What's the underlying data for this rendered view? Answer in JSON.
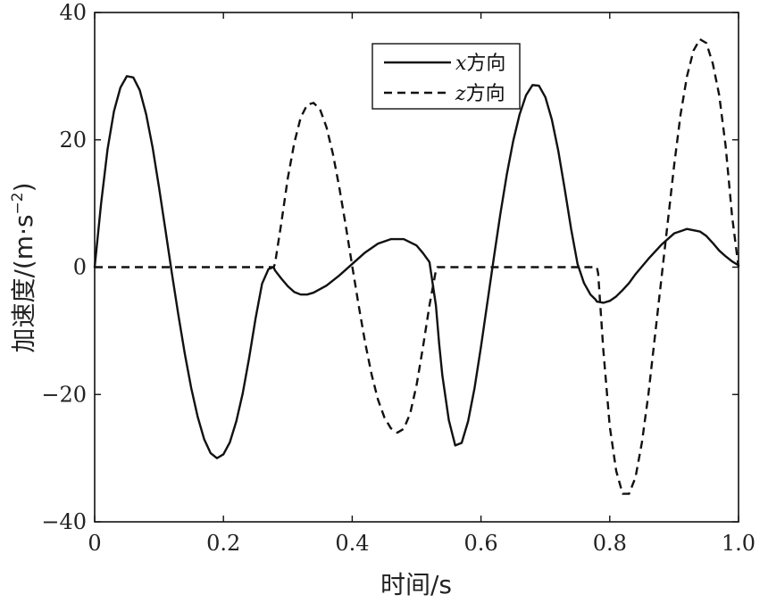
{
  "chart_data": {
    "type": "line",
    "xlabel": "时间/s",
    "ylabel": "加速度/(m·s",
    "ylabel_sup": "−2",
    "ylabel_close": ")",
    "xlim": [
      0,
      1.0
    ],
    "ylim": [
      -40,
      40
    ],
    "xticks": [
      0,
      0.2,
      0.4,
      0.6,
      0.8,
      1.0
    ],
    "xtick_labels": [
      "0",
      "0.2",
      "0.4",
      "0.6",
      "0.8",
      "1.0"
    ],
    "yticks": [
      40,
      20,
      0,
      -20,
      -40
    ],
    "ytick_labels": [
      "40",
      "20",
      "0",
      "−20",
      "−40"
    ],
    "legend_position": "top-right",
    "grid": false,
    "series": [
      {
        "name": "x方向",
        "name_var": "x",
        "name_rest": "方向",
        "style": "solid",
        "color": "#111111",
        "x": [
          0,
          0.005,
          0.01,
          0.02,
          0.03,
          0.04,
          0.05,
          0.06,
          0.07,
          0.08,
          0.09,
          0.1,
          0.11,
          0.12,
          0.13,
          0.14,
          0.15,
          0.16,
          0.17,
          0.18,
          0.19,
          0.2,
          0.21,
          0.22,
          0.23,
          0.24,
          0.25,
          0.26,
          0.27,
          0.278,
          0.28,
          0.29,
          0.3,
          0.31,
          0.32,
          0.33,
          0.34,
          0.36,
          0.38,
          0.4,
          0.42,
          0.44,
          0.46,
          0.48,
          0.5,
          0.51,
          0.52,
          0.53,
          0.535,
          0.54,
          0.55,
          0.56,
          0.57,
          0.58,
          0.59,
          0.6,
          0.61,
          0.62,
          0.63,
          0.64,
          0.65,
          0.66,
          0.67,
          0.68,
          0.69,
          0.7,
          0.71,
          0.72,
          0.73,
          0.74,
          0.75,
          0.76,
          0.77,
          0.778,
          0.78,
          0.79,
          0.8,
          0.81,
          0.82,
          0.83,
          0.84,
          0.86,
          0.88,
          0.9,
          0.92,
          0.94,
          0.95,
          0.96,
          0.97,
          0.98,
          0.99,
          1.0
        ],
        "y": [
          0,
          5,
          10,
          18.5,
          24.5,
          28.2,
          30,
          29.8,
          27.8,
          24,
          18.8,
          12.5,
          5.8,
          -1,
          -7.5,
          -13.6,
          -19,
          -23.5,
          -27,
          -29.2,
          -30,
          -29.4,
          -27.5,
          -24.2,
          -19.8,
          -14.2,
          -8,
          -2.6,
          -0.3,
          0,
          -0.5,
          -1.8,
          -3,
          -3.9,
          -4.3,
          -4.3,
          -4,
          -2.9,
          -1.3,
          0.5,
          2.3,
          3.7,
          4.4,
          4.4,
          3.4,
          2.2,
          0.8,
          -6,
          -12,
          -17,
          -24,
          -28,
          -27.6,
          -24.2,
          -19,
          -12.5,
          -5.5,
          1.5,
          8.3,
          14.5,
          19.8,
          24,
          27,
          28.6,
          28.5,
          26.7,
          23.2,
          18.3,
          12.3,
          6,
          0.5,
          -2.5,
          -4.3,
          -5.1,
          -5.4,
          -5.6,
          -5.3,
          -4.6,
          -3.6,
          -2.5,
          -1.1,
          1.3,
          3.5,
          5.3,
          6,
          5.6,
          4.9,
          3.8,
          2.6,
          1.7,
          0.9,
          0.3
        ]
      },
      {
        "name": "z方向",
        "name_var": "z",
        "name_rest": "方向",
        "style": "dashed",
        "color": "#111111",
        "x": [
          0,
          0.278,
          0.28,
          0.29,
          0.3,
          0.31,
          0.32,
          0.33,
          0.34,
          0.35,
          0.36,
          0.37,
          0.38,
          0.39,
          0.4,
          0.41,
          0.42,
          0.43,
          0.44,
          0.45,
          0.46,
          0.47,
          0.48,
          0.49,
          0.5,
          0.51,
          0.52,
          0.53,
          0.532,
          0.78,
          0.782,
          0.79,
          0.8,
          0.81,
          0.82,
          0.83,
          0.84,
          0.85,
          0.86,
          0.87,
          0.88,
          0.89,
          0.9,
          0.91,
          0.92,
          0.93,
          0.94,
          0.95,
          0.96,
          0.97,
          0.98,
          0.99,
          1.0
        ],
        "y": [
          0,
          0,
          0.5,
          7,
          14,
          19.5,
          23.5,
          25.5,
          25.8,
          24.8,
          22,
          17.8,
          12.5,
          6.5,
          0.2,
          -6,
          -11.8,
          -16.8,
          -20.8,
          -23.6,
          -25.3,
          -26,
          -25.4,
          -23,
          -18.5,
          -12.5,
          -6,
          -0.5,
          0,
          0,
          -1,
          -13,
          -25,
          -32,
          -35.6,
          -35.6,
          -33,
          -27.5,
          -20,
          -11,
          -2,
          7,
          16,
          24,
          30,
          34,
          35.8,
          35.2,
          32,
          27,
          19,
          8,
          0
        ]
      }
    ]
  }
}
